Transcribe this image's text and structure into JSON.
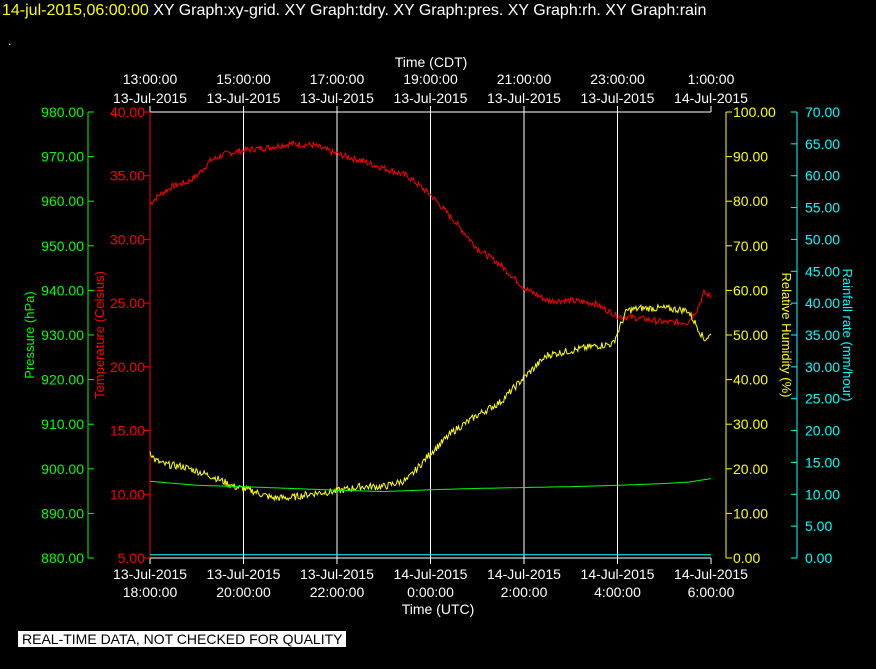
{
  "header": {
    "datetime": "14-jul-2015,06:00:00",
    "title": "  XY Graph:xy-grid.  XY Graph:tdry.  XY Graph:pres.  XY Graph:rh.  XY Graph:rain",
    "dot": "."
  },
  "footer": {
    "notice": "REAL-TIME DATA, NOT CHECKED FOR QUALITY"
  },
  "colors": {
    "pressure": "#00ff00",
    "temperature": "#ff0000",
    "humidity": "#ffff00",
    "rain": "#00ffff",
    "grid": "#ffffff",
    "background": "#000000"
  },
  "chart_data": {
    "type": "line",
    "x_range": [
      "13-Jul-2015 18:00:00 UTC",
      "14-Jul-2015 06:00:00 UTC"
    ],
    "top_axis": {
      "title": "Time (CDT)",
      "ticks": [
        {
          "time": "13:00:00",
          "date": "13-Jul-2015"
        },
        {
          "time": "15:00:00",
          "date": "13-Jul-2015"
        },
        {
          "time": "17:00:00",
          "date": "13-Jul-2015"
        },
        {
          "time": "19:00:00",
          "date": "13-Jul-2015"
        },
        {
          "time": "21:00:00",
          "date": "13-Jul-2015"
        },
        {
          "time": "23:00:00",
          "date": "13-Jul-2015"
        },
        {
          "time": "1:00:00",
          "date": "14-Jul-2015"
        }
      ]
    },
    "bottom_axis": {
      "title": "Time (UTC)",
      "ticks": [
        {
          "date": "13-Jul-2015",
          "time": "18:00:00"
        },
        {
          "date": "13-Jul-2015",
          "time": "20:00:00"
        },
        {
          "date": "13-Jul-2015",
          "time": "22:00:00"
        },
        {
          "date": "14-Jul-2015",
          "time": "0:00:00"
        },
        {
          "date": "14-Jul-2015",
          "time": "2:00:00"
        },
        {
          "date": "14-Jul-2015",
          "time": "4:00:00"
        },
        {
          "date": "14-Jul-2015",
          "time": "6:00:00"
        }
      ]
    },
    "axes": {
      "pressure": {
        "label": "Pressure (hPa)",
        "min": 880,
        "max": 980,
        "ticks": [
          "880.00",
          "890.00",
          "900.00",
          "910.00",
          "920.00",
          "930.00",
          "940.00",
          "950.00",
          "960.00",
          "970.00",
          "980.00"
        ]
      },
      "temperature": {
        "label": "Temperature (Celsius)",
        "min": 5,
        "max": 40,
        "ticks": [
          "5.00",
          "10.00",
          "15.00",
          "20.00",
          "25.00",
          "30.00",
          "35.00",
          "40.00"
        ]
      },
      "humidity": {
        "label": "Relative Humidity (%)",
        "min": 0,
        "max": 100,
        "ticks": [
          "0.00",
          "10.00",
          "20.00",
          "30.00",
          "40.00",
          "50.00",
          "60.00",
          "70.00",
          "80.00",
          "90.00",
          "100.00"
        ]
      },
      "rain": {
        "label": "Rainfall rate (mm/hour)",
        "min": 0,
        "max": 70,
        "ticks": [
          "0.00",
          "5.00",
          "10.00",
          "15.00",
          "20.00",
          "25.00",
          "30.00",
          "35.00",
          "40.00",
          "45.00",
          "50.00",
          "55.00",
          "60.00",
          "65.00",
          "70.00"
        ]
      }
    },
    "series": [
      {
        "name": "tdry",
        "axis": "temperature",
        "x_hours": [
          0,
          0.2,
          0.5,
          0.8,
          1.0,
          1.3,
          1.6,
          2.0,
          2.5,
          3.0,
          3.5,
          4.0,
          4.5,
          5.0,
          5.5,
          6.0,
          6.5,
          7.0,
          7.5,
          8.0,
          8.5,
          9.0,
          9.5,
          10.0,
          10.5,
          11.0,
          11.5,
          11.7,
          11.85,
          12.0
        ],
        "values": [
          32.8,
          33.5,
          34.2,
          34.5,
          35.0,
          36.2,
          36.7,
          37.0,
          37.2,
          37.5,
          37.4,
          36.7,
          36.2,
          35.6,
          35.0,
          33.5,
          31.5,
          29.3,
          28.0,
          26.2,
          25.2,
          25.2,
          25.0,
          24.0,
          23.8,
          23.5,
          23.5,
          24.5,
          25.8,
          25.5
        ]
      },
      {
        "name": "rh",
        "axis": "humidity",
        "x_hours": [
          0,
          0.1,
          0.3,
          0.7,
          1.0,
          1.4,
          1.8,
          2.2,
          2.6,
          3.0,
          3.5,
          4.0,
          4.5,
          5.0,
          5.5,
          6.0,
          6.5,
          7.0,
          7.5,
          8.0,
          8.5,
          9.0,
          9.5,
          9.9,
          10.2,
          10.5,
          11.0,
          11.5,
          11.7,
          11.85,
          12.0
        ],
        "values": [
          24.0,
          22.0,
          21.0,
          20.5,
          19.5,
          18.0,
          16.0,
          15.0,
          13.5,
          13.5,
          14.5,
          15.0,
          16.0,
          16.0,
          17.5,
          23.5,
          28.5,
          32.0,
          35.0,
          40.5,
          45.5,
          46.5,
          47.5,
          48.0,
          55.5,
          56.0,
          56.0,
          55.5,
          52.0,
          49.0,
          50.0
        ]
      },
      {
        "name": "pres",
        "axis": "pressure",
        "x_hours": [
          0,
          1,
          2,
          3,
          4,
          5,
          6,
          7,
          8,
          9,
          10,
          11,
          11.5,
          12.0
        ],
        "values": [
          897.2,
          896.3,
          896.0,
          895.6,
          895.2,
          894.9,
          895.3,
          895.6,
          895.8,
          896.0,
          896.3,
          896.7,
          897.0,
          897.8
        ]
      },
      {
        "name": "rain",
        "axis": "rain",
        "x_hours": [
          0,
          12
        ],
        "values": [
          0.5,
          0.5
        ]
      }
    ]
  }
}
